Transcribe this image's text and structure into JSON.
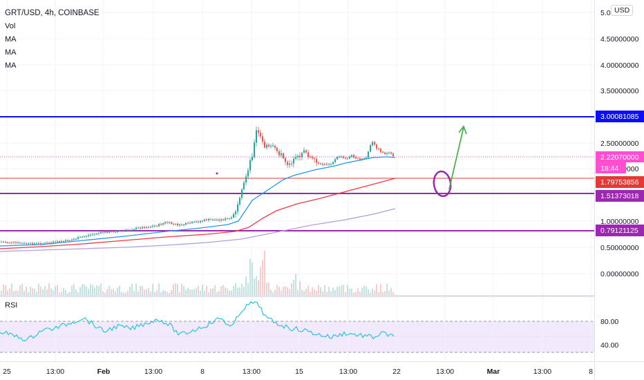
{
  "legend": {
    "symbol": "GRT/USD, 4h, COINBASE",
    "items": [
      "Vol",
      "MA",
      "MA",
      "MA"
    ]
  },
  "currency_button": "USD",
  "price_axis": {
    "ticks": [
      "5.00000000",
      "4.50000000",
      "4.00000000",
      "3.50000000",
      "2.50000000",
      "2.00000000",
      "1.00000000",
      "0.50000000",
      "0.00000000"
    ],
    "partial_tick": "5.0"
  },
  "price_labels": {
    "level_top": "3.00081085",
    "current_price": "2.22070000",
    "countdown": "18:44",
    "red_line": "1.79753856",
    "level_mid": "1.51373018",
    "level_low": "0.79121125"
  },
  "colors": {
    "level_navy": "#0c0cff",
    "level_purple": "#9c27b0",
    "current_pink": "#ff4ed0",
    "red_line": "#e53935",
    "ma_blue": "#2196f3",
    "ma_red": "#f23645",
    "ma_violet": "#b39ddb",
    "rsi_line": "#26c6da",
    "rsi_band": "#ede0fc",
    "up": "#26a69a",
    "down": "#ef5350",
    "annotation_circle": "#9c27b0",
    "annotation_arrow": "#4caf50"
  },
  "rsi": {
    "label": "RSI",
    "ticks": [
      "80.00",
      "40.00"
    ]
  },
  "time_axis": {
    "labels": [
      "25",
      "13:00",
      "Feb",
      "13:00",
      "8",
      "13:00",
      "15",
      "13:00",
      "22",
      "13:00",
      "Mar",
      "13:00",
      "8"
    ]
  }
}
